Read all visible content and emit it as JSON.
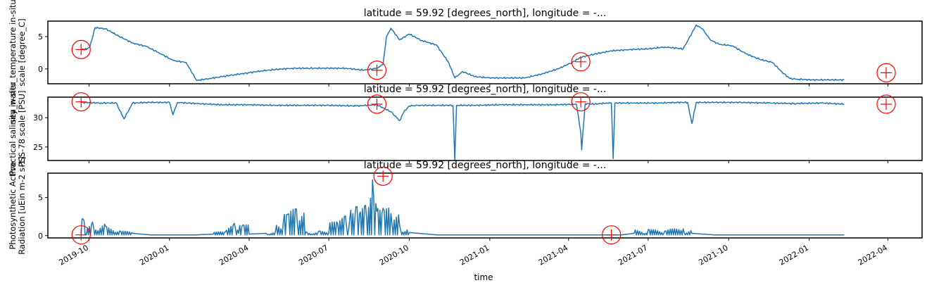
{
  "figure": {
    "xlabel": "time",
    "colors": {
      "line": "#1f77b4",
      "marker": "#ff0000",
      "axis": "#000000"
    }
  },
  "chart_data": [
    {
      "type": "line",
      "title": "latitude = 59.92 [degrees_north], longitude = -...",
      "ylabel": [
        "sea_water_temperature in-situ ITS-",
        "scale [degree_C]"
      ],
      "ylim": [
        -2.3,
        7.4
      ],
      "yticks": [
        0,
        5
      ],
      "xlim": [
        "2019-08-15",
        "2022-05-10"
      ],
      "xticks": [
        "2019-10",
        "2020-01",
        "2020-04",
        "2020-07",
        "2020-10",
        "2021-01",
        "2021-04",
        "2021-07",
        "2021-10",
        "2022-01",
        "2022-04"
      ],
      "series": [
        {
          "x": [
            "2019-09-22",
            "2019-09-28",
            "2019-10-02",
            "2019-10-08",
            "2019-10-20",
            "2019-11-05",
            "2019-11-20",
            "2019-12-05",
            "2019-12-20",
            "2020-01-05",
            "2020-01-20",
            "2020-02-01",
            "2020-02-15",
            "2020-03-01",
            "2020-03-15",
            "2020-04-01",
            "2020-04-15",
            "2020-05-01",
            "2020-05-20",
            "2020-06-10",
            "2020-07-01",
            "2020-07-20",
            "2020-08-10",
            "2020-08-25",
            "2020-09-01",
            "2020-09-05",
            "2020-09-10",
            "2020-09-20",
            "2020-10-01",
            "2020-10-15",
            "2020-11-01",
            "2020-11-15",
            "2020-11-22",
            "2020-12-01",
            "2020-12-15",
            "2021-01-01",
            "2021-01-20",
            "2021-02-10",
            "2021-03-01",
            "2021-03-20",
            "2021-04-05",
            "2021-04-15",
            "2021-05-01",
            "2021-05-20",
            "2021-06-10",
            "2021-07-01",
            "2021-07-20",
            "2021-08-10",
            "2021-08-25",
            "2021-09-01",
            "2021-09-10",
            "2021-09-20",
            "2021-10-05",
            "2021-10-20",
            "2021-11-05",
            "2021-11-20",
            "2021-12-01",
            "2021-12-10",
            "2021-12-20",
            "2022-01-05",
            "2022-01-20",
            "2022-02-10"
          ],
          "y": [
            3.0,
            3.1,
            3.4,
            6.4,
            6.2,
            5.0,
            4.0,
            3.5,
            2.5,
            1.3,
            1.0,
            -1.8,
            -1.5,
            -1.2,
            -0.9,
            -0.6,
            -0.3,
            -0.1,
            0.1,
            0.1,
            0.1,
            0.1,
            -0.2,
            0.1,
            0.7,
            5.0,
            6.3,
            4.5,
            5.4,
            4.4,
            3.7,
            1.0,
            -1.4,
            -0.4,
            -1.2,
            -1.4,
            -1.4,
            -1.4,
            -0.8,
            0.0,
            1.0,
            1.8,
            2.3,
            2.8,
            3.0,
            3.1,
            3.4,
            3.1,
            6.8,
            6.2,
            4.5,
            3.8,
            3.6,
            2.4,
            1.5,
            1.0,
            -0.5,
            -1.5,
            -1.6,
            -1.7,
            -1.7,
            -1.7
          ]
        }
      ],
      "markers": [
        [
          "2019-09-22",
          3.0
        ],
        [
          "2020-08-25",
          -0.2
        ],
        [
          "2021-04-15",
          1.1
        ],
        [
          "2022-03-30",
          -0.6
        ]
      ]
    },
    {
      "type": "line",
      "title": "latitude = 59.92 [degrees_north], longitude = -...",
      "ylabel": [
        "Practical salinity in-situ",
        "PSS-78 scale [PSU]"
      ],
      "ylim": [
        22.7,
        33.5
      ],
      "yticks": [
        25,
        30
      ],
      "xlim": [
        "2019-08-15",
        "2022-05-10"
      ],
      "xticks": [
        "2019-10",
        "2020-01",
        "2020-04",
        "2020-07",
        "2020-10",
        "2021-01",
        "2021-04",
        "2021-07",
        "2021-10",
        "2022-01",
        "2022-04"
      ],
      "series": [
        {
          "x": [
            "2019-09-22",
            "2019-10-15",
            "2019-11-01",
            "2019-11-10",
            "2019-11-20",
            "2019-12-10",
            "2020-01-01",
            "2020-01-05",
            "2020-01-10",
            "2020-02-01",
            "2020-03-01",
            "2020-04-01",
            "2020-05-01",
            "2020-06-01",
            "2020-07-01",
            "2020-08-01",
            "2020-08-25",
            "2020-09-10",
            "2020-09-20",
            "2020-09-25",
            "2020-10-01",
            "2020-10-10",
            "2020-11-01",
            "2020-11-20",
            "2020-11-22",
            "2020-11-24",
            "2020-12-15",
            "2021-01-15",
            "2021-02-15",
            "2021-03-15",
            "2021-04-10",
            "2021-04-15",
            "2021-04-16",
            "2021-04-20",
            "2021-05-01",
            "2021-05-15",
            "2021-05-20",
            "2021-05-22",
            "2021-05-24",
            "2021-06-15",
            "2021-07-15",
            "2021-08-01",
            "2021-08-15",
            "2021-08-20",
            "2021-08-25",
            "2021-09-15",
            "2021-10-15",
            "2021-11-15",
            "2021-12-15",
            "2022-01-15",
            "2022-02-10"
          ],
          "y": [
            32.6,
            32.5,
            32.5,
            29.8,
            32.5,
            32.6,
            32.6,
            30.5,
            32.6,
            32.4,
            32.2,
            32.2,
            32.1,
            32.1,
            32.1,
            32.0,
            32.2,
            31.0,
            29.5,
            31.0,
            32.0,
            32.1,
            32.1,
            32.1,
            22.7,
            32.1,
            32.1,
            32.2,
            32.2,
            32.2,
            32.3,
            27.5,
            24.5,
            32.4,
            32.3,
            32.5,
            32.5,
            23.0,
            32.5,
            32.5,
            32.5,
            32.6,
            32.6,
            29.0,
            32.6,
            32.6,
            32.6,
            32.5,
            32.4,
            32.5,
            32.3
          ]
        }
      ],
      "markers": [
        [
          "2019-09-22",
          32.7
        ],
        [
          "2020-08-25",
          32.3
        ],
        [
          "2021-04-15",
          32.7
        ],
        [
          "2022-03-30",
          32.3
        ]
      ]
    },
    {
      "type": "line",
      "title": "latitude = 59.92 [degrees_north], longitude = -...",
      "ylabel": [
        "Photosynthetic Active",
        "Radiation [uEin m-2 s-1]"
      ],
      "ylim": [
        -0.3,
        8.2
      ],
      "yticks": [
        0,
        5
      ],
      "xlim": [
        "2019-08-15",
        "2022-05-10"
      ],
      "xticks": [
        "2019-10",
        "2020-01",
        "2020-04",
        "2020-07",
        "2020-10",
        "2021-01",
        "2021-04",
        "2021-07",
        "2021-10",
        "2022-01",
        "2022-04"
      ],
      "xticklabels": [
        "2019-10",
        "2020-01",
        "2020-04",
        "2020-07",
        "2020-10",
        "2021-01",
        "2021-04",
        "2021-07",
        "2021-10",
        "2022-01",
        "2022-04"
      ],
      "series": [
        {
          "x": [
            "2019-09-22",
            "2019-09-24",
            "2019-09-28",
            "2019-10-05",
            "2019-10-20",
            "2019-11-05",
            "2019-11-20",
            "2019-12-10",
            "2020-01-15",
            "2020-02-01",
            "2020-02-20",
            "2020-03-05",
            "2020-03-15",
            "2020-03-20",
            "2020-03-25",
            "2020-04-01",
            "2020-04-20",
            "2020-05-01",
            "2020-05-10",
            "2020-05-15",
            "2020-05-25",
            "2020-06-05",
            "2020-06-20",
            "2020-07-01",
            "2020-07-10",
            "2020-07-20",
            "2020-07-25",
            "2020-08-01",
            "2020-08-05",
            "2020-08-12",
            "2020-08-20",
            "2020-08-25",
            "2020-09-01",
            "2020-09-10",
            "2020-09-20",
            "2020-10-01",
            "2020-11-01",
            "2020-12-01",
            "2021-01-01",
            "2021-02-01",
            "2021-03-01",
            "2021-04-01",
            "2021-05-01",
            "2021-06-01",
            "2021-06-15",
            "2021-07-01",
            "2021-07-20",
            "2021-08-10",
            "2021-08-20",
            "2021-09-15",
            "2021-10-15",
            "2021-12-01",
            "2022-01-15",
            "2022-02-10"
          ],
          "y": [
            0.1,
            2.2,
            0.2,
            1.8,
            1.2,
            0.6,
            0.3,
            0.1,
            0.1,
            0.1,
            0.2,
            0.5,
            1.6,
            0.3,
            1.4,
            0.2,
            0.3,
            0.5,
            1.6,
            2.8,
            3.5,
            0.5,
            0.6,
            0.3,
            1.8,
            2.6,
            2.2,
            3.8,
            2.8,
            4.0,
            7.3,
            3.2,
            3.6,
            2.9,
            1.3,
            0.4,
            0.1,
            0.1,
            0.1,
            0.1,
            0.1,
            0.1,
            0.1,
            0.1,
            0.3,
            0.8,
            0.6,
            0.9,
            0.3,
            0.1,
            0.1,
            0.1,
            0.1,
            0.1
          ]
        }
      ],
      "markers": [
        [
          "2019-09-22",
          0.1
        ],
        [
          "2020-09-01",
          7.8
        ],
        [
          "2021-05-20",
          0.1
        ]
      ]
    }
  ]
}
